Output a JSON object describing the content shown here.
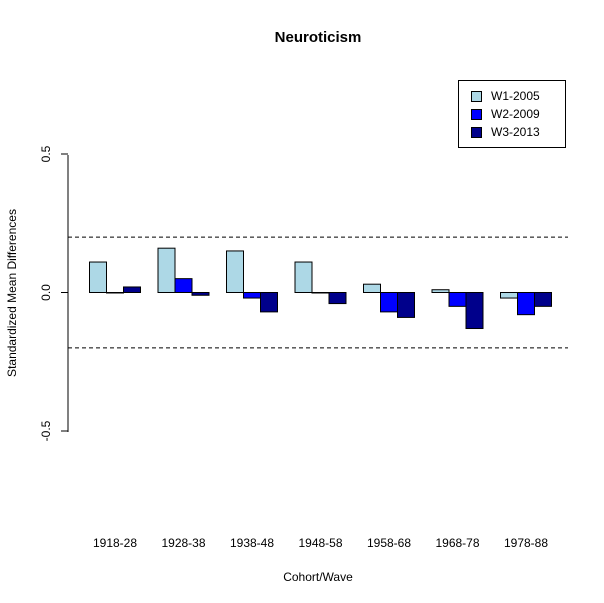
{
  "chart_data": {
    "type": "bar",
    "title": "Neuroticism",
    "xlabel": "Cohort/Wave",
    "ylabel": "Standardized Mean Differences",
    "categories": [
      "1918-28",
      "1928-38",
      "1938-48",
      "1948-58",
      "1958-68",
      "1968-78",
      "1978-88"
    ],
    "series": [
      {
        "name": "W1-2005",
        "color": "#add8e6",
        "values": [
          0.11,
          0.16,
          0.15,
          0.11,
          0.03,
          0.01,
          -0.02
        ]
      },
      {
        "name": "W2-2009",
        "color": "#0000ff",
        "values": [
          0.0,
          0.05,
          -0.02,
          0.0,
          -0.07,
          -0.05,
          -0.08
        ]
      },
      {
        "name": "W3-2013",
        "color": "#00008b",
        "values": [
          0.02,
          -0.01,
          -0.07,
          -0.04,
          -0.09,
          -0.13,
          -0.05
        ]
      }
    ],
    "yticks": [
      {
        "value": 0.5,
        "label": "0.5"
      },
      {
        "value": 0.0,
        "label": "0.0"
      },
      {
        "value": -0.5,
        "label": "-0.5"
      }
    ],
    "reference_lines": [
      0.2,
      -0.2
    ],
    "ylim": [
      -0.5,
      0.5
    ],
    "legend_position": "top-right",
    "grid": false
  }
}
